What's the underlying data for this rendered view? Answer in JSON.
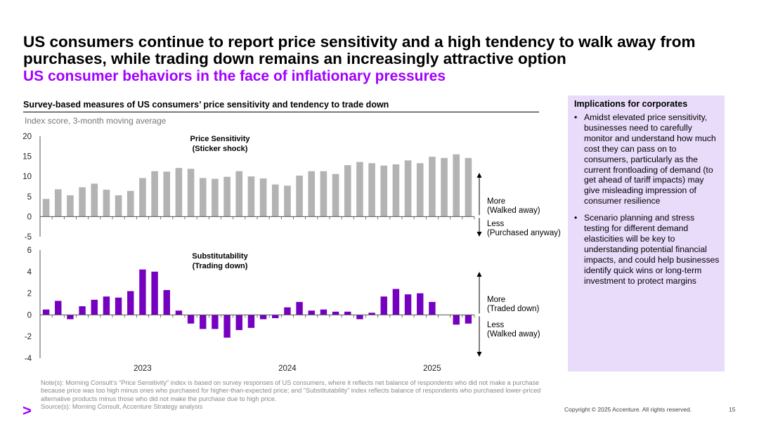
{
  "slide": {
    "title": "US consumers continue to report price sensitivity and a high tendency to walk away from purchases, while trading down remains an increasingly attractive option",
    "subtitle": "US consumer behaviors in the face of inflationary pressures",
    "chart_heading": "Survey-based measures of US consumers’ price sensitivity and tendency to trade down",
    "chart_unit": "Index score, 3-month moving average"
  },
  "implications": {
    "title": "Implications for corporates",
    "bullet_char": "•",
    "bullets": [
      "Amidst elevated price sensitivity, businesses need to carefully monitor and understand how much cost they can pass on to consumers, particularly as the current frontloading of demand (to get ahead of tariff impacts) may give misleading impression of consumer resilience",
      "Scenario planning and stress testing for different demand elasticities will be key to understanding potential financial impacts, and could help businesses identify quick wins or long-term investment to protect margins"
    ]
  },
  "notes": {
    "note": "Note(s): Morning Consult’s “Price Sensitivity” index is based on survey responses of US consumers, where it reflects net balance of respondents who did not make a purchase because price was too high minus ones who purchased for higher-than-expected price; and “Substitutability” index reflects balance of respondents who purchased lower-priced alternative products minus those who did not make the purchase due to high price.",
    "source": "Source(s): Morning Consult, Accenture Strategy analysis"
  },
  "footer": {
    "logo_glyph": ">",
    "copyright": "Copyright © 2025 Accenture. All rights reserved.",
    "page_number": "15"
  },
  "colors": {
    "gray_bar": "#b3b3b3",
    "purple_bar": "#7500c0",
    "accent": "#a100ff",
    "axis": "#555555"
  },
  "chart_data": [
    {
      "type": "bar",
      "title": "Price Sensitivity",
      "title_line2": "(Sticker shock)",
      "ylim": [
        -5,
        20
      ],
      "yticks": [
        20,
        15,
        10,
        5,
        0,
        -5
      ],
      "values": [
        4.4,
        6.8,
        5.3,
        7.3,
        8.2,
        6.7,
        5.3,
        6.4,
        9.6,
        11.3,
        11.2,
        12.1,
        11.9,
        9.6,
        9.4,
        9.9,
        11.3,
        10.0,
        9.5,
        8.0,
        7.7,
        10.2,
        11.3,
        11.3,
        10.6,
        12.8,
        13.6,
        13.3,
        12.7,
        13.0,
        14.0,
        13.3,
        14.9,
        14.6,
        15.5,
        14.6
      ],
      "color": "#b3b3b3",
      "annotation_up": [
        "More",
        "(Walked away)"
      ],
      "annotation_down": [
        "Less",
        "(Purchased anyway)"
      ]
    },
    {
      "type": "bar",
      "title": "Substitutability",
      "title_line2": "(Trading down)",
      "ylim": [
        -4,
        6
      ],
      "yticks": [
        6,
        4,
        2,
        0,
        -2,
        -4
      ],
      "values": [
        0.5,
        1.3,
        -0.4,
        0.8,
        1.4,
        1.7,
        1.6,
        2.2,
        4.2,
        4.0,
        2.3,
        0.4,
        -0.8,
        -1.3,
        -1.3,
        -2.1,
        -1.4,
        -1.2,
        -0.4,
        -0.3,
        0.7,
        1.2,
        0.4,
        0.5,
        0.3,
        0.3,
        -0.4,
        0.2,
        1.7,
        2.4,
        1.9,
        2.0,
        1.2,
        0.0,
        -0.9,
        -0.8
      ],
      "color": "#7500c0",
      "x_labels": [
        "2023",
        "2024",
        "2025"
      ],
      "annotation_up": [
        "More",
        "(Traded down)"
      ],
      "annotation_down": [
        "Less",
        "(Walked away)"
      ]
    }
  ]
}
